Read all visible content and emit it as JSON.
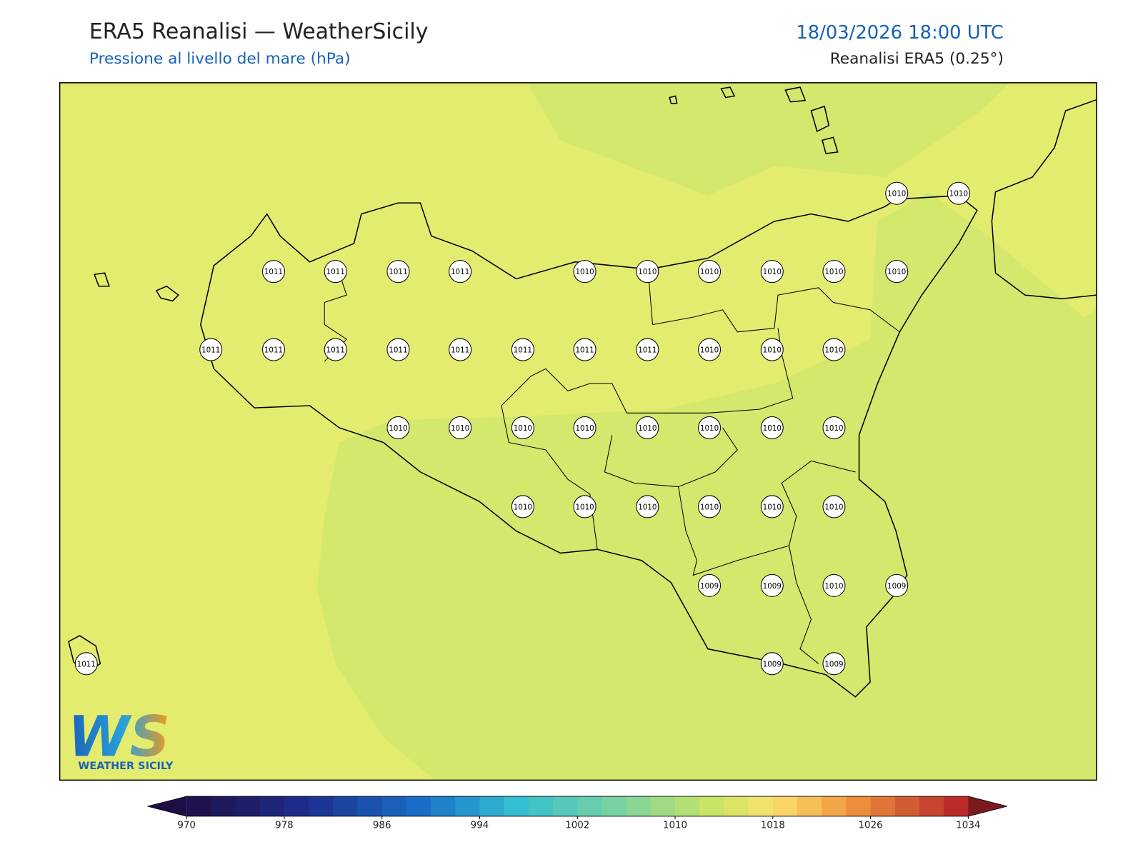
{
  "header": {
    "title": "ERA5 Reanalisi — WeatherSicily",
    "subtitle": "Pressione al livello del mare (hPa)",
    "date": "18/03/2026 18:00 UTC",
    "source": "Reanalisi ERA5 (0.25°)"
  },
  "stations": [
    1010,
    1010,
    1011,
    1011,
    1011,
    1011,
    1010,
    1010,
    1010,
    1010,
    1010,
    1010,
    1011,
    1011,
    1011,
    1011,
    1011,
    1011,
    1011,
    1011,
    1010,
    1010,
    1010,
    1010,
    1010,
    1010,
    1010,
    1010,
    1010,
    1010,
    1010,
    1010,
    1010,
    1010,
    1010,
    1010,
    1010,
    1009,
    1009,
    1010,
    1009,
    1011,
    1009,
    1009
  ],
  "logo": {
    "text": "WS",
    "caption": "WEATHER SICILY"
  },
  "colorbar": {
    "ticks": [
      970,
      978,
      986,
      994,
      1002,
      1010,
      1018,
      1026,
      1034
    ]
  }
}
